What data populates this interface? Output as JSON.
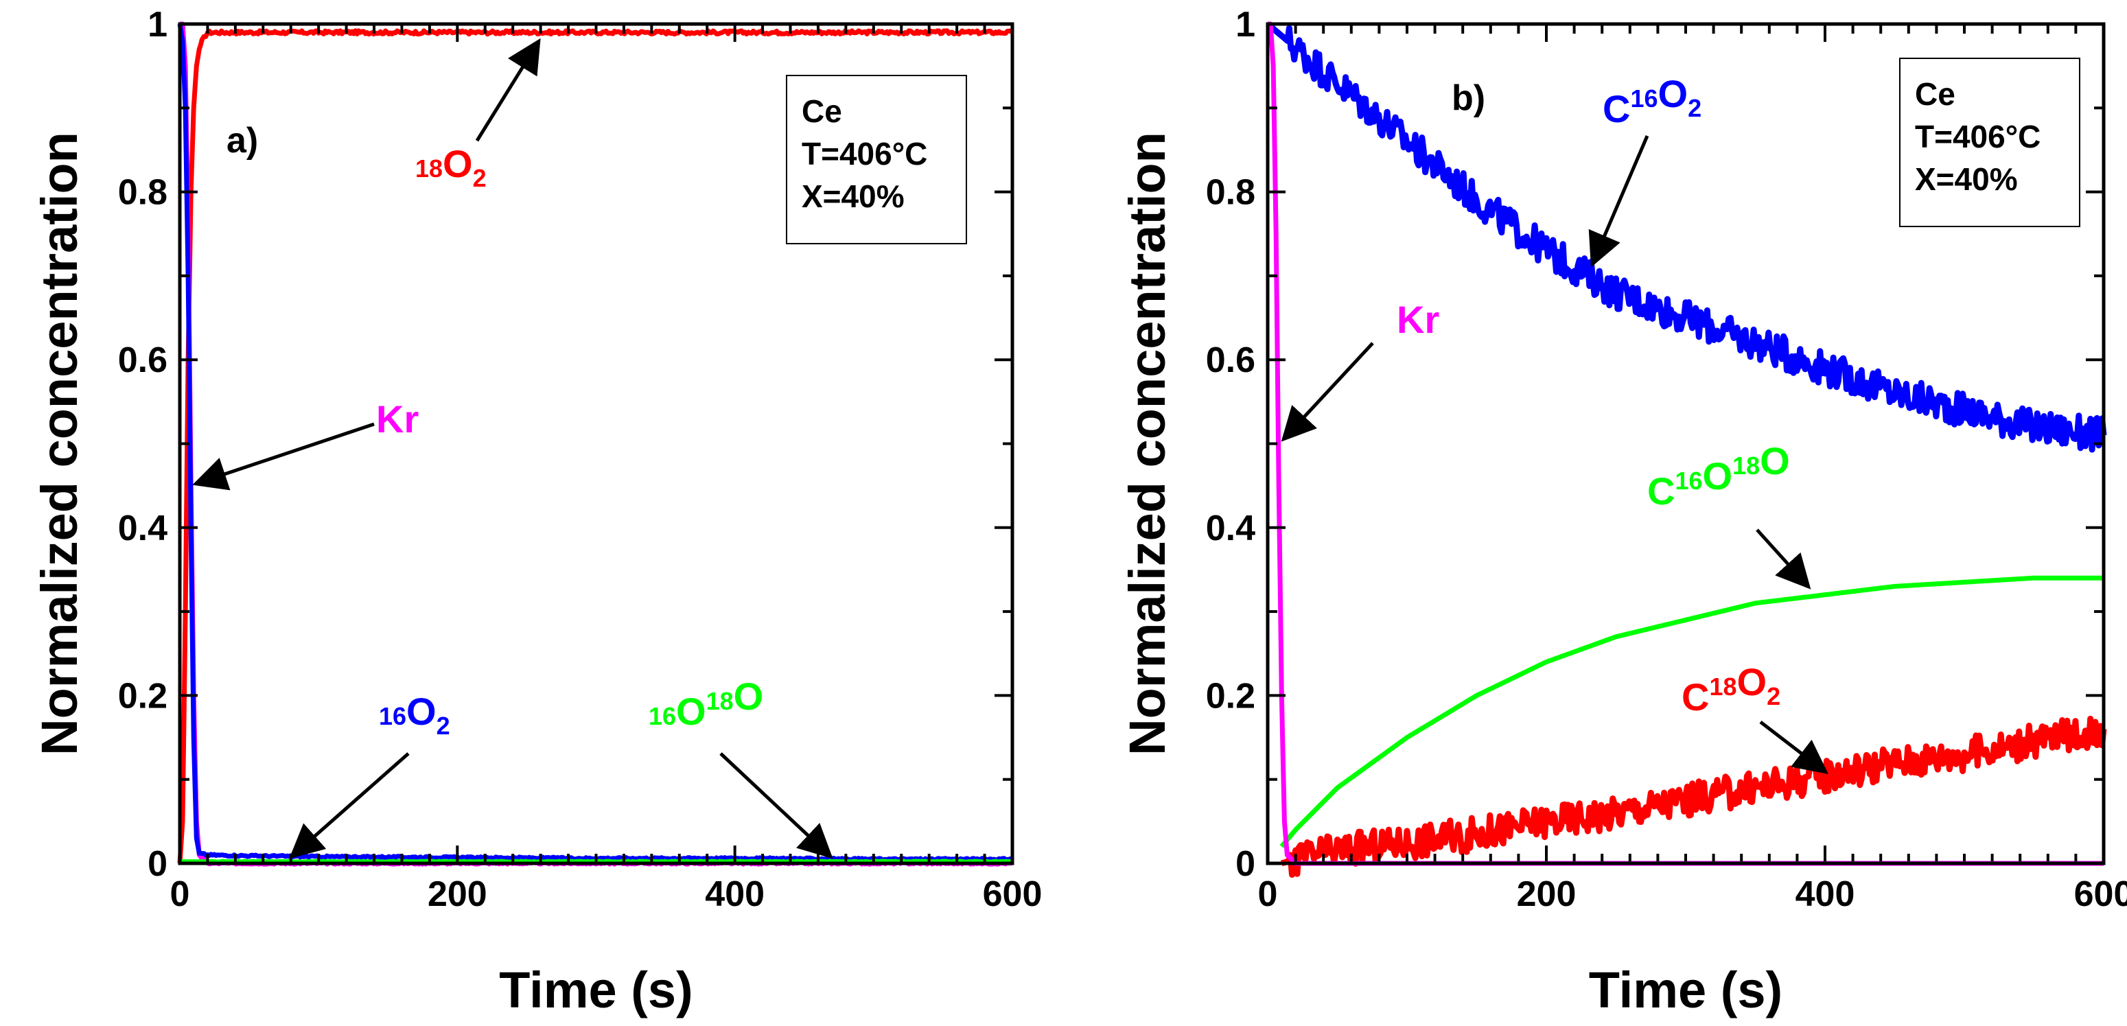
{
  "chart_data": [
    {
      "panel": "a)",
      "type": "line",
      "xlabel": "Time (s)",
      "ylabel": "Normalized concentration",
      "xlim": [
        0,
        600
      ],
      "ylim": [
        0,
        1
      ],
      "xticks": [
        "0",
        "200",
        "400",
        "600"
      ],
      "yticks": [
        "0",
        "0.2",
        "0.4",
        "0.6",
        "0.8",
        "1"
      ],
      "legend_box": [
        "Ce",
        "T=406°C",
        "X=40%"
      ],
      "series": [
        {
          "name": "18O2",
          "color": "#ff0000",
          "x": [
            0,
            2,
            4,
            6,
            8,
            10,
            12,
            14,
            16,
            20,
            30,
            60,
            100,
            200,
            300,
            400,
            500,
            600
          ],
          "y": [
            0,
            0.05,
            0.3,
            0.6,
            0.8,
            0.9,
            0.95,
            0.97,
            0.98,
            0.99,
            0.99,
            0.99,
            0.99,
            0.99,
            0.99,
            0.99,
            0.99,
            0.99
          ]
        },
        {
          "name": "Kr",
          "color": "#ff00ff",
          "x": [
            0,
            2,
            4,
            6,
            8,
            10,
            12,
            14,
            20,
            50,
            100,
            200,
            300,
            400,
            500,
            600
          ],
          "y": [
            1,
            1,
            0.95,
            0.75,
            0.45,
            0.2,
            0.05,
            0.01,
            0.0,
            0.0,
            0.0,
            0.0,
            0.0,
            0.0,
            0.0,
            0.0
          ]
        },
        {
          "name": "16O2",
          "color": "#0000ff",
          "x": [
            0,
            2,
            4,
            6,
            8,
            10,
            12,
            14,
            20,
            50,
            100,
            200,
            300,
            400,
            500,
            600
          ],
          "y": [
            1,
            0.98,
            0.9,
            0.7,
            0.4,
            0.15,
            0.03,
            0.012,
            0.01,
            0.009,
            0.008,
            0.007,
            0.006,
            0.006,
            0.005,
            0.005
          ]
        },
        {
          "name": "16O18O",
          "color": "#00ff00",
          "x": [
            0,
            100,
            200,
            300,
            400,
            500,
            600
          ],
          "y": [
            0.002,
            0.002,
            0.002,
            0.002,
            0.002,
            0.002,
            0.002
          ]
        }
      ],
      "annotations": [
        {
          "label": "18O2",
          "parts": [
            [
              "sup",
              "18"
            ],
            [
              "base",
              "O"
            ],
            [
              "sub",
              "2"
            ]
          ],
          "color": "#ff0000"
        },
        {
          "label": "Kr",
          "parts": [
            [
              "base",
              "Kr"
            ]
          ],
          "color": "#ff00ff"
        },
        {
          "label": "16O2",
          "parts": [
            [
              "sup",
              "16"
            ],
            [
              "base",
              "O"
            ],
            [
              "sub",
              "2"
            ]
          ],
          "color": "#0000ff"
        },
        {
          "label": "16O18O",
          "parts": [
            [
              "sup",
              "16"
            ],
            [
              "base",
              "O"
            ],
            [
              "sup",
              "18"
            ],
            [
              "base",
              "O"
            ]
          ],
          "color": "#00ff00"
        }
      ]
    },
    {
      "panel": "b)",
      "type": "line",
      "xlabel": "Time (s)",
      "ylabel": "Normalized concentration",
      "xlim": [
        0,
        600
      ],
      "ylim": [
        0,
        1
      ],
      "xticks": [
        "0",
        "200",
        "400",
        "600"
      ],
      "yticks": [
        "0",
        "0.2",
        "0.4",
        "0.6",
        "0.8",
        "1"
      ],
      "legend_box": [
        "Ce",
        "T=406°C",
        "X=40%"
      ],
      "series": [
        {
          "name": "C16O2",
          "color": "#0000ff",
          "x": [
            0,
            50,
            100,
            150,
            200,
            250,
            300,
            350,
            400,
            450,
            500,
            550,
            600
          ],
          "y": [
            1.0,
            0.93,
            0.86,
            0.79,
            0.73,
            0.68,
            0.65,
            0.62,
            0.59,
            0.56,
            0.54,
            0.52,
            0.51
          ]
        },
        {
          "name": "C16O18O",
          "color": "#00ff00",
          "x": [
            10,
            20,
            50,
            100,
            150,
            200,
            250,
            300,
            350,
            400,
            450,
            500,
            550,
            600
          ],
          "y": [
            0.02,
            0.04,
            0.09,
            0.15,
            0.2,
            0.24,
            0.27,
            0.29,
            0.31,
            0.32,
            0.33,
            0.335,
            0.34,
            0.34
          ]
        },
        {
          "name": "C18O2",
          "color": "#ff0000",
          "x": [
            10,
            20,
            50,
            100,
            150,
            200,
            250,
            300,
            350,
            400,
            450,
            500,
            550,
            600
          ],
          "y": [
            0.0,
            0.005,
            0.015,
            0.025,
            0.035,
            0.05,
            0.06,
            0.075,
            0.09,
            0.105,
            0.12,
            0.13,
            0.145,
            0.16
          ]
        },
        {
          "name": "Kr",
          "color": "#ff00ff",
          "x": [
            0,
            2,
            4,
            6,
            8,
            10,
            12,
            14,
            20,
            100,
            200,
            300,
            400,
            500,
            600
          ],
          "y": [
            1,
            1,
            0.95,
            0.75,
            0.45,
            0.2,
            0.05,
            0.01,
            0.0,
            0.0,
            0.0,
            0.0,
            0.0,
            0.0,
            0.0
          ]
        }
      ],
      "annotations": [
        {
          "label": "C16O2",
          "parts": [
            [
              "base",
              "C"
            ],
            [
              "sup",
              "16"
            ],
            [
              "base",
              "O"
            ],
            [
              "sub",
              "2"
            ]
          ],
          "color": "#0000ff"
        },
        {
          "label": "Kr",
          "parts": [
            [
              "base",
              "Kr"
            ]
          ],
          "color": "#ff00ff"
        },
        {
          "label": "C16O18O",
          "parts": [
            [
              "base",
              "C"
            ],
            [
              "sup",
              "16"
            ],
            [
              "base",
              "O"
            ],
            [
              "sup",
              "18"
            ],
            [
              "base",
              "O"
            ]
          ],
          "color": "#00ff00"
        },
        {
          "label": "C18O2",
          "parts": [
            [
              "base",
              "C"
            ],
            [
              "sup",
              "18"
            ],
            [
              "base",
              "O"
            ],
            [
              "sub",
              "2"
            ]
          ],
          "color": "#ff0000"
        }
      ]
    }
  ]
}
